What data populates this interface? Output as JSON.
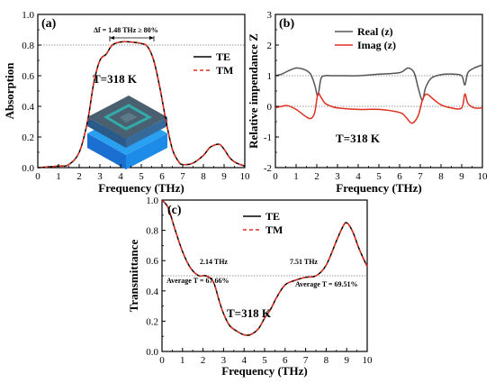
{
  "chart_data": [
    {
      "panel": "(a)",
      "type": "line",
      "xlabel": "Frequency (THz)",
      "ylabel": "Absorption",
      "xlim": [
        0,
        10
      ],
      "ylim": [
        0,
        1.0
      ],
      "xticks": [
        "0",
        "1",
        "2",
        "3",
        "4",
        "5",
        "6",
        "7",
        "8",
        "9",
        "10"
      ],
      "yticks": [
        "0.0",
        "0.2",
        "0.4",
        "0.6",
        "0.8",
        "1.0"
      ],
      "temperature_label": "T=318 K",
      "annotation": "Δf = 1.48 THz ≥ 80%",
      "reference_line_y": 0.8,
      "series": [
        {
          "name": "TE",
          "color": "#000000",
          "dash": "solid",
          "x": [
            0,
            1,
            1.5,
            2,
            2.4,
            2.7,
            3,
            3.3,
            3.6,
            4,
            4.5,
            5,
            5.3,
            5.6,
            5.9,
            6.2,
            6.5,
            6.8,
            7,
            7.5,
            8,
            8.3,
            8.6,
            8.8,
            9,
            9.3,
            9.6,
            10
          ],
          "y": [
            0,
            0.01,
            0.02,
            0.1,
            0.3,
            0.55,
            0.7,
            0.74,
            0.8,
            0.82,
            0.82,
            0.81,
            0.79,
            0.7,
            0.52,
            0.3,
            0.12,
            0.04,
            0.02,
            0.03,
            0.08,
            0.13,
            0.15,
            0.15,
            0.12,
            0.06,
            0.03,
            0.01
          ]
        },
        {
          "name": "TM",
          "color": "#e03020",
          "dash": "dashed",
          "x": [
            0,
            1,
            1.5,
            2,
            2.4,
            2.7,
            3,
            3.3,
            3.6,
            4,
            4.5,
            5,
            5.3,
            5.6,
            5.9,
            6.2,
            6.5,
            6.8,
            7,
            7.5,
            8,
            8.3,
            8.6,
            8.8,
            9,
            9.3,
            9.6,
            10
          ],
          "y": [
            0,
            0.01,
            0.02,
            0.1,
            0.3,
            0.55,
            0.7,
            0.74,
            0.8,
            0.82,
            0.82,
            0.81,
            0.79,
            0.7,
            0.52,
            0.3,
            0.12,
            0.04,
            0.02,
            0.03,
            0.08,
            0.13,
            0.15,
            0.15,
            0.12,
            0.06,
            0.03,
            0.01
          ]
        }
      ]
    },
    {
      "panel": "(b)",
      "type": "line",
      "xlabel": "Frequency (THz)",
      "ylabel": "Relative impendance Z",
      "xlim": [
        0,
        10
      ],
      "ylim": [
        -2,
        3
      ],
      "xticks": [
        "0",
        "1",
        "2",
        "3",
        "4",
        "5",
        "6",
        "7",
        "8",
        "9",
        "10"
      ],
      "yticks": [
        "-2",
        "-1",
        "0",
        "1",
        "2",
        "3"
      ],
      "temperature_label": "T=318 K",
      "reference_lines_y": [
        1,
        0
      ],
      "series": [
        {
          "name": "Real (z)",
          "color": "#555555",
          "dash": "solid",
          "x": [
            0,
            0.3,
            0.6,
            1,
            1.4,
            1.7,
            1.9,
            2.05,
            2.2,
            2.4,
            2.7,
            3,
            4,
            5,
            6,
            6.4,
            6.7,
            6.9,
            7.1,
            7.25,
            7.5,
            7.8,
            8.2,
            8.6,
            9,
            9.15,
            9.3,
            9.6,
            10
          ],
          "y": [
            1.0,
            1.05,
            1.15,
            1.25,
            1.2,
            1.05,
            0.7,
            0.35,
            0.9,
            1.0,
            1.0,
            1.0,
            1.0,
            1.05,
            1.1,
            1.25,
            1.1,
            0.6,
            0.2,
            0.6,
            0.9,
            1.0,
            1.05,
            1.05,
            1.0,
            0.7,
            1.1,
            1.25,
            1.35
          ]
        },
        {
          "name": "Imag (z)",
          "color": "#e03020",
          "dash": "solid",
          "x": [
            0,
            0.3,
            0.6,
            1,
            1.4,
            1.7,
            1.9,
            2.05,
            2.2,
            2.4,
            2.7,
            3,
            4,
            5,
            6,
            6.3,
            6.6,
            6.9,
            7.1,
            7.3,
            7.6,
            8,
            8.5,
            9,
            9.15,
            9.3,
            9.6,
            10
          ],
          "y": [
            -0.05,
            0,
            0.02,
            -0.1,
            -0.3,
            -0.4,
            -0.2,
            0.4,
            0.3,
            0.1,
            0,
            -0.05,
            -0.1,
            -0.1,
            -0.2,
            -0.35,
            -0.55,
            -0.3,
            0.2,
            0.4,
            0.25,
            0.05,
            -0.05,
            -0.05,
            0.4,
            0.1,
            -0.05,
            -0.05
          ]
        }
      ]
    },
    {
      "panel": "(c)",
      "type": "line",
      "xlabel": "Frequency (THz)",
      "ylabel": "Transmittance",
      "xlim": [
        0,
        10
      ],
      "ylim": [
        0,
        1.0
      ],
      "xticks": [
        "0",
        "1",
        "2",
        "3",
        "4",
        "5",
        "6",
        "7",
        "8",
        "9",
        "10"
      ],
      "yticks": [
        "0.0",
        "0.2",
        "0.4",
        "0.6",
        "0.8",
        "1.0"
      ],
      "temperature_label": "T=318 K",
      "reference_line_y": 0.5,
      "annotations": [
        "2.14 THz",
        "Average T = 67.66%",
        "7.51 THz",
        "Average T = 69.51%"
      ],
      "series": [
        {
          "name": "TE",
          "color": "#000000",
          "dash": "solid",
          "x": [
            0,
            0.3,
            0.6,
            1,
            1.4,
            1.8,
            2.14,
            2.5,
            2.8,
            3,
            3.3,
            3.7,
            4,
            4.3,
            4.7,
            5,
            5.3,
            5.6,
            6,
            6.5,
            7,
            7.51,
            8,
            8.5,
            8.8,
            9,
            9.3,
            9.6,
            10
          ],
          "y": [
            1.0,
            0.95,
            0.82,
            0.66,
            0.55,
            0.5,
            0.5,
            0.46,
            0.33,
            0.25,
            0.17,
            0.13,
            0.11,
            0.11,
            0.15,
            0.22,
            0.28,
            0.36,
            0.44,
            0.47,
            0.49,
            0.5,
            0.57,
            0.73,
            0.82,
            0.85,
            0.79,
            0.68,
            0.56
          ]
        },
        {
          "name": "TM",
          "color": "#e03020",
          "dash": "dashed",
          "x": [
            0,
            0.3,
            0.6,
            1,
            1.4,
            1.8,
            2.14,
            2.5,
            2.8,
            3,
            3.3,
            3.7,
            4,
            4.3,
            4.7,
            5,
            5.3,
            5.6,
            6,
            6.5,
            7,
            7.51,
            8,
            8.5,
            8.8,
            9,
            9.3,
            9.6,
            10
          ],
          "y": [
            1.0,
            0.95,
            0.82,
            0.66,
            0.55,
            0.5,
            0.5,
            0.46,
            0.33,
            0.25,
            0.17,
            0.13,
            0.11,
            0.11,
            0.15,
            0.22,
            0.28,
            0.36,
            0.44,
            0.47,
            0.49,
            0.5,
            0.57,
            0.73,
            0.82,
            0.85,
            0.79,
            0.68,
            0.56
          ]
        }
      ]
    }
  ]
}
